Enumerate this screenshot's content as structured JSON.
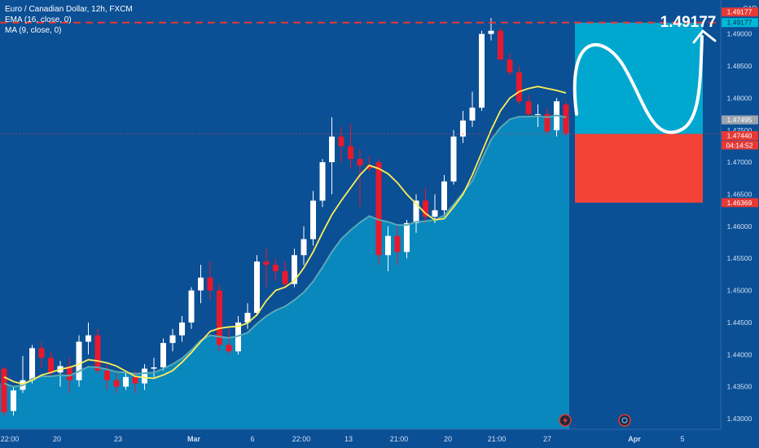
{
  "legend": {
    "symbol": "Euro / Canadian Dollar, 12h, FXCM",
    "ema": "EMA (16, close, 0)",
    "ma": "MA (9, close, 0)"
  },
  "currency": "CAD",
  "target_label": "1.49177",
  "price_tags": {
    "top": "1.49177",
    "target": "1.49177",
    "last": "1.47495",
    "current": "1.47440",
    "countdown": "04:14:52",
    "stop": "1.46369"
  },
  "colors": {
    "background": "#0b4f95",
    "up": "#ffffff",
    "down": "#e8192c",
    "ema": "#5aa9b5",
    "ma": "#ffee58",
    "area": "#0a8bbf",
    "profit_zone": "#00a8d0",
    "loss_zone": "#f44336",
    "target_line": "#e53935"
  },
  "chart_data": {
    "type": "candlestick",
    "y_ticks": [
      "1.49000",
      "1.48500",
      "1.48000",
      "1.47500",
      "1.47000",
      "1.46500",
      "1.46000",
      "1.45500",
      "1.45000",
      "1.44500",
      "1.44000",
      "1.43500",
      "1.43000"
    ],
    "x_ticks": [
      "22:00",
      "20",
      "23",
      "Mar",
      "6",
      "22:00",
      "13",
      "21:00",
      "20",
      "21:00",
      "27",
      "Apr",
      "5"
    ],
    "ylim": [
      1.43,
      1.4925
    ],
    "candles": [
      [
        1.4378,
        1.4381,
        1.4305,
        1.431
      ],
      [
        1.4312,
        1.435,
        1.4305,
        1.4344
      ],
      [
        1.4345,
        1.4398,
        1.434,
        1.436
      ],
      [
        1.436,
        1.4415,
        1.4355,
        1.441
      ],
      [
        1.441,
        1.442,
        1.438,
        1.4395
      ],
      [
        1.4395,
        1.4405,
        1.4365,
        1.4372
      ],
      [
        1.4372,
        1.439,
        1.435,
        1.4382
      ],
      [
        1.4382,
        1.4395,
        1.434,
        1.436
      ],
      [
        1.436,
        1.443,
        1.435,
        1.442
      ],
      [
        1.442,
        1.445,
        1.44,
        1.443
      ],
      [
        1.443,
        1.444,
        1.437,
        1.4375
      ],
      [
        1.4375,
        1.4385,
        1.4345,
        1.436
      ],
      [
        1.436,
        1.4372,
        1.434,
        1.435
      ],
      [
        1.435,
        1.4372,
        1.4345,
        1.4365
      ],
      [
        1.4365,
        1.4375,
        1.434,
        1.4355
      ],
      [
        1.4355,
        1.4385,
        1.4345,
        1.4378
      ],
      [
        1.4378,
        1.4395,
        1.4365,
        1.438
      ],
      [
        1.438,
        1.4425,
        1.4375,
        1.4418
      ],
      [
        1.4418,
        1.444,
        1.4405,
        1.443
      ],
      [
        1.443,
        1.446,
        1.442,
        1.445
      ],
      [
        1.445,
        1.4505,
        1.444,
        1.45
      ],
      [
        1.45,
        1.454,
        1.448,
        1.452
      ],
      [
        1.452,
        1.4545,
        1.4485,
        1.45
      ],
      [
        1.45,
        1.451,
        1.4405,
        1.4415
      ],
      [
        1.4415,
        1.444,
        1.44,
        1.4405
      ],
      [
        1.4405,
        1.446,
        1.44,
        1.445
      ],
      [
        1.445,
        1.448,
        1.444,
        1.4465
      ],
      [
        1.4465,
        1.4555,
        1.446,
        1.4545
      ],
      [
        1.4545,
        1.4565,
        1.4505,
        1.454
      ],
      [
        1.454,
        1.455,
        1.4515,
        1.453
      ],
      [
        1.453,
        1.4545,
        1.4505,
        1.451
      ],
      [
        1.451,
        1.4565,
        1.4505,
        1.4555
      ],
      [
        1.4555,
        1.46,
        1.454,
        1.458
      ],
      [
        1.458,
        1.4655,
        1.457,
        1.464
      ],
      [
        1.464,
        1.4705,
        1.463,
        1.47
      ],
      [
        1.47,
        1.477,
        1.465,
        1.474
      ],
      [
        1.474,
        1.4755,
        1.47,
        1.4725
      ],
      [
        1.4725,
        1.476,
        1.469,
        1.4705
      ],
      [
        1.4705,
        1.472,
        1.463,
        1.4695
      ],
      [
        1.4695,
        1.471,
        1.4685,
        1.469
      ],
      [
        1.47,
        1.4705,
        1.454,
        1.4555
      ],
      [
        1.4555,
        1.46,
        1.453,
        1.4585
      ],
      [
        1.4585,
        1.46,
        1.454,
        1.456
      ],
      [
        1.456,
        1.461,
        1.455,
        1.4605
      ],
      [
        1.4605,
        1.465,
        1.459,
        1.464
      ],
      [
        1.464,
        1.466,
        1.4605,
        1.4615
      ],
      [
        1.4615,
        1.465,
        1.4605,
        1.4625
      ],
      [
        1.4625,
        1.468,
        1.4615,
        1.467
      ],
      [
        1.467,
        1.475,
        1.4665,
        1.474
      ],
      [
        1.474,
        1.478,
        1.473,
        1.4765
      ],
      [
        1.4765,
        1.481,
        1.4755,
        1.4785
      ],
      [
        1.4785,
        1.4905,
        1.478,
        1.49
      ],
      [
        1.49,
        1.4925,
        1.489,
        1.4905
      ],
      [
        1.4905,
        1.491,
        1.486,
        1.486
      ],
      [
        1.486,
        1.487,
        1.4835,
        1.484
      ],
      [
        1.484,
        1.485,
        1.479,
        1.4795
      ],
      [
        1.4795,
        1.4805,
        1.477,
        1.4775
      ],
      [
        1.4775,
        1.479,
        1.4755,
        1.4775
      ],
      [
        1.4775,
        1.4785,
        1.4745,
        1.4748
      ],
      [
        1.475,
        1.48,
        1.474,
        1.4795
      ],
      [
        1.479,
        1.4795,
        1.474,
        1.4745
      ]
    ],
    "ema": [
      1.4355,
      1.435,
      1.4352,
      1.4362,
      1.4366,
      1.4366,
      1.4368,
      1.4367,
      1.4374,
      1.4381,
      1.438,
      1.4377,
      1.4373,
      1.4372,
      1.437,
      1.4371,
      1.4372,
      1.4378,
      1.4385,
      1.4394,
      1.4407,
      1.4422,
      1.443,
      1.4428,
      1.4426,
      1.4429,
      1.4434,
      1.4448,
      1.446,
      1.4469,
      1.4475,
      1.4485,
      1.4497,
      1.4514,
      1.4536,
      1.456,
      1.458,
      1.4594,
      1.4606,
      1.4616,
      1.461,
      1.4607,
      1.4602,
      1.4602,
      1.4607,
      1.4608,
      1.461,
      1.4617,
      1.4634,
      1.4652,
      1.4671,
      1.4704,
      1.4735,
      1.4754,
      1.4767,
      1.4771,
      1.4771,
      1.4772,
      1.477,
      1.4773,
      1.477
    ],
    "ma": [
      1.4365,
      1.4358,
      1.4354,
      1.436,
      1.4368,
      1.4372,
      1.4377,
      1.438,
      1.4385,
      1.4392,
      1.439,
      1.4387,
      1.4382,
      1.4374,
      1.4366,
      1.4364,
      1.4363,
      1.4368,
      1.4375,
      1.4388,
      1.4403,
      1.442,
      1.4436,
      1.4441,
      1.4443,
      1.4444,
      1.4449,
      1.4462,
      1.4484,
      1.45,
      1.4505,
      1.4515,
      1.4535,
      1.456,
      1.459,
      1.4618,
      1.464,
      1.466,
      1.468,
      1.4695,
      1.469,
      1.4682,
      1.4668,
      1.465,
      1.4635,
      1.462,
      1.461,
      1.4612,
      1.463,
      1.465,
      1.468,
      1.4715,
      1.475,
      1.478,
      1.48,
      1.481,
      1.4815,
      1.4818,
      1.4815,
      1.4812,
      1.4808
    ],
    "target_price": 1.49177,
    "entry_price": 1.4744,
    "stop_price": 1.46369
  }
}
